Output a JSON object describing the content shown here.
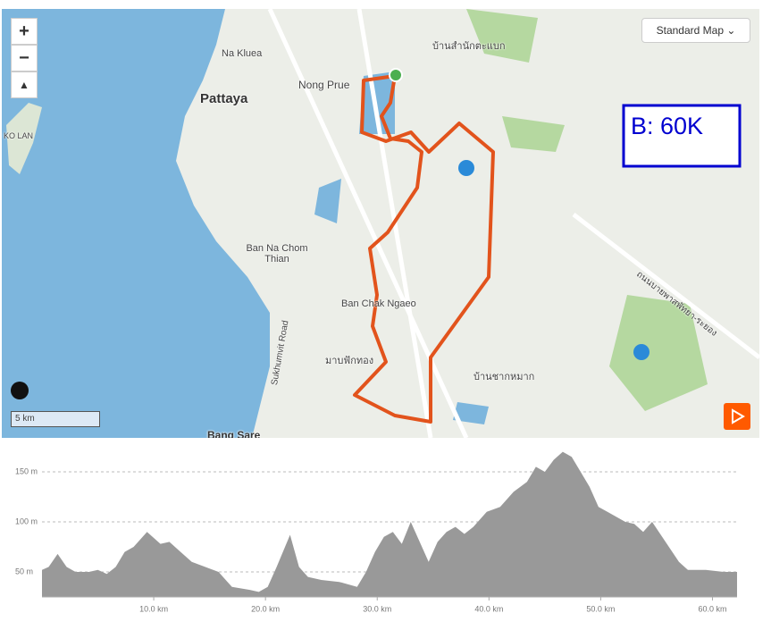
{
  "map": {
    "labels": [
      "Na Kluea",
      "Pattaya",
      "Nong Prue",
      "KO LAN",
      "Ban Na Chom Thian",
      "Ban Chak Ngaeo",
      "Sukhumvit Road",
      "Bang Sare",
      "บ้านสำนักตะแบก",
      "มาบฟักทอง",
      "บ้านชากหมาก",
      "ถนนบายพาสพัทยา-ระยอง"
    ],
    "style_selector": "Standard Map",
    "annotation": "B: 60K",
    "scale": "5 km"
  },
  "chart_data": {
    "type": "area",
    "color": "#999999",
    "x": [
      0,
      0.6,
      1.4,
      2.2,
      3,
      4.2,
      5,
      5.8,
      6.6,
      7.4,
      8.2,
      9.4,
      10.6,
      11.4,
      12.2,
      13.4,
      14.6,
      15.8,
      17,
      18.6,
      19.4,
      20.2,
      21,
      22.2,
      23,
      23.8,
      25,
      26.6,
      28.2,
      29,
      29.8,
      30.6,
      31.4,
      32.2,
      33,
      33.8,
      34.6,
      35.4,
      36.2,
      37,
      37.8,
      38.6,
      39.8,
      41,
      42.2,
      43.4,
      44.2,
      45,
      45.8,
      46.6,
      47.4,
      48.2,
      49,
      49.8,
      50.6,
      51.4,
      52.2,
      53,
      53.8,
      54.6,
      55.8,
      57,
      57.8,
      59.4,
      61,
      62.2
    ],
    "values": [
      52,
      55,
      68,
      55,
      50,
      50,
      52,
      48,
      55,
      70,
      75,
      90,
      78,
      80,
      72,
      60,
      55,
      50,
      35,
      32,
      30,
      35,
      55,
      87,
      55,
      45,
      42,
      40,
      35,
      50,
      70,
      85,
      90,
      78,
      100,
      80,
      60,
      80,
      90,
      95,
      88,
      95,
      110,
      115,
      130,
      140,
      155,
      150,
      162,
      170,
      165,
      150,
      135,
      115,
      110,
      105,
      100,
      98,
      90,
      100,
      80,
      60,
      52,
      52,
      50,
      50
    ],
    "xlim": [
      0,
      62.2
    ],
    "ylim": [
      25,
      175
    ],
    "xticks": [
      {
        "value": 10,
        "label": "10.0 km"
      },
      {
        "value": 20,
        "label": "20.0 km"
      },
      {
        "value": 30,
        "label": "30.0 km"
      },
      {
        "value": 40,
        "label": "40.0 km"
      },
      {
        "value": 50,
        "label": "50.0 km"
      },
      {
        "value": 60,
        "label": "60.0 km"
      }
    ],
    "yticks": [
      {
        "value": 50,
        "label": "50 m"
      },
      {
        "value": 100,
        "label": "100 m"
      },
      {
        "value": 150,
        "label": "150 m"
      }
    ],
    "grid": true
  }
}
